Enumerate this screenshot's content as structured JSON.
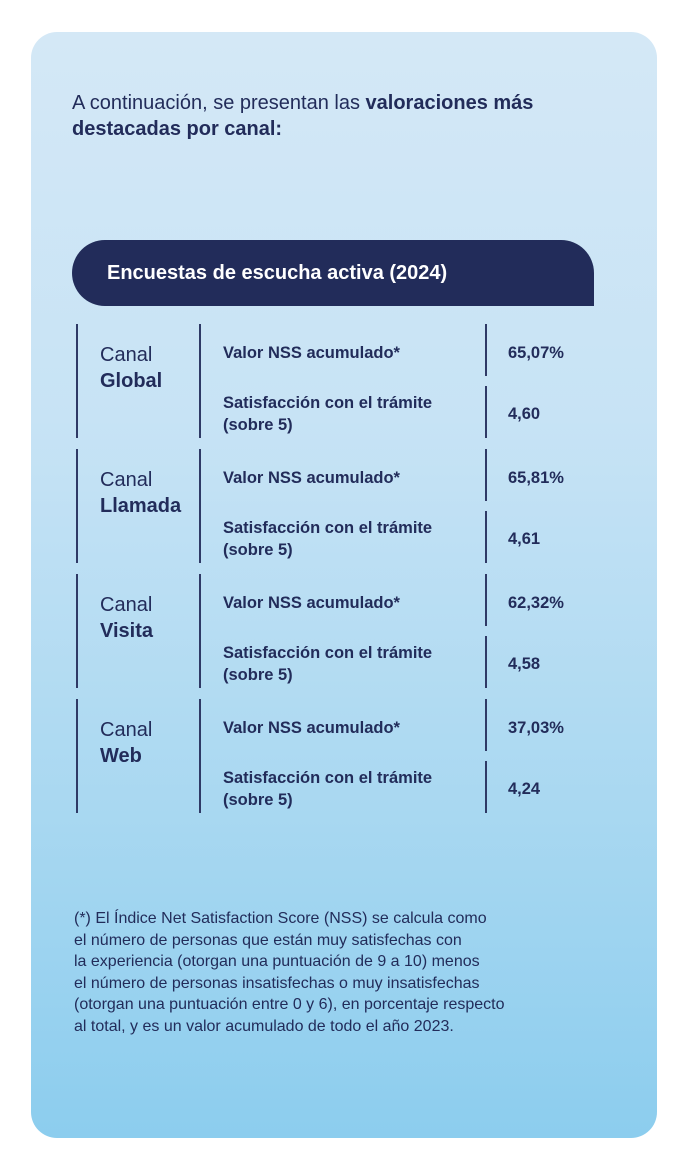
{
  "intro": {
    "normal": "A continuación, se presentan las ",
    "bold": "valoraciones más destacadas por canal:"
  },
  "header": {
    "title": "Encuestas de escucha activa (2024)"
  },
  "channels": [
    {
      "word": "Canal",
      "name": "Global",
      "nss_label": "Valor NSS acumulado*",
      "nss_value": "65,07%",
      "sat_label_1": "Satisfacción con el trámite",
      "sat_label_2": "(sobre 5)",
      "sat_value": "4,60"
    },
    {
      "word": "Canal",
      "name": "Llamada",
      "nss_label": "Valor NSS acumulado*",
      "nss_value": "65,81%",
      "sat_label_1": "Satisfacción con el trámite",
      "sat_label_2": "(sobre 5)",
      "sat_value": "4,61"
    },
    {
      "word": "Canal",
      "name": "Visita",
      "nss_label": "Valor NSS acumulado*",
      "nss_value": "62,32%",
      "sat_label_1": "Satisfacción con el trámite",
      "sat_label_2": "(sobre 5)",
      "sat_value": "4,58"
    },
    {
      "word": "Canal",
      "name": "Web",
      "nss_label": "Valor NSS acumulado*",
      "nss_value": "37,03%",
      "sat_label_1": "Satisfacción con el trámite",
      "sat_label_2": "(sobre 5)",
      "sat_value": "4,24"
    }
  ],
  "footnote": {
    "lines": [
      "(*) El Índice Net Satisfaction Score (NSS) se calcula como",
      "el número de personas que están muy satisfechas con",
      "la experiencia (otorgan una puntuación de 9 a 10) menos",
      "el número de personas insatisfechas o muy insatisfechas",
      "(otorgan una puntuación entre 0 y 6), en porcentaje respecto",
      "al total, y es un valor acumulado de todo el año 2023."
    ]
  },
  "colors": {
    "navy": "#222c5a",
    "card_top": "#d4e8f6",
    "card_bottom": "#8ccdee"
  }
}
